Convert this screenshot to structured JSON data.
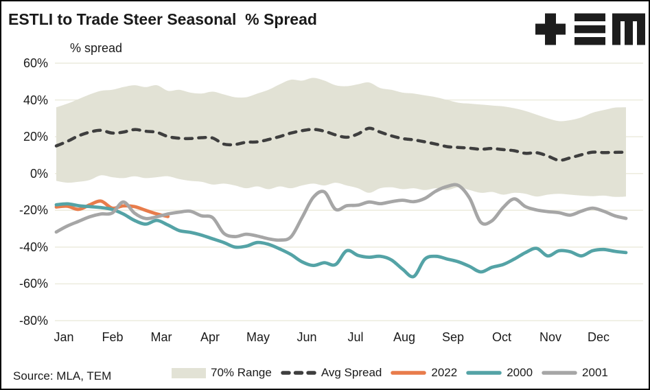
{
  "header": {
    "title": "ESTLI to Trade Steer Seasonal  % Spread",
    "logo": "tem-logo"
  },
  "source": "Source: MLA, TEM",
  "colors": {
    "band": "#E2E2D5",
    "gridline": "#ECEBDD",
    "avg_spread": "#3E3E3E",
    "s2022": "#E87C4B",
    "s2000": "#54A3A6",
    "s2001": "#A6A6A6",
    "text": "#1A1A1A"
  },
  "chart_data": {
    "type": "line",
    "title": "ESTLI to Trade Steer Seasonal  % Spread",
    "xlabel": "",
    "ylabel": "% spread",
    "axis_label": "% spread",
    "ylim": [
      -80,
      60
    ],
    "y_ticks": [
      60,
      40,
      20,
      0,
      -20,
      -40,
      -60,
      -80
    ],
    "y_tick_labels": [
      "60%",
      "40%",
      "20%",
      "0%",
      "-20%",
      "-40%",
      "-60%",
      "-80%"
    ],
    "x_tick_labels": [
      "Jan",
      "Feb",
      "Mar",
      "Apr",
      "May",
      "Jun",
      "Jul",
      "Aug",
      "Sep",
      "Oct",
      "Nov",
      "Dec"
    ],
    "grid": "horizontal-only",
    "legend_position": "bottom",
    "legend": [
      {
        "label": "70% Range",
        "style": "band",
        "color": "#E2E2D5"
      },
      {
        "label": "Avg Spread",
        "style": "dashed",
        "color": "#3E3E3E"
      },
      {
        "label": "2022",
        "style": "solid",
        "color": "#E87C4B"
      },
      {
        "label": "2000",
        "style": "solid",
        "color": "#54A3A6"
      },
      {
        "label": "2001",
        "style": "solid",
        "color": "#A6A6A6"
      }
    ],
    "x_unit": "weeks (Jan-Dec)",
    "band": {
      "name": "70% Range",
      "color": "#E2E2D5",
      "upper": [
        36,
        38,
        40.5,
        43,
        45,
        45.5,
        47,
        48,
        47,
        48,
        45,
        45.5,
        44,
        43.5,
        44.5,
        43,
        41.5,
        41.5,
        43.5,
        45.5,
        48.5,
        51,
        50.5,
        52,
        50.5,
        48,
        47.5,
        48.5,
        49.5,
        46.5,
        45.5,
        44,
        43.5,
        42.5,
        41.5,
        40,
        38.5,
        38,
        37.5,
        37,
        36.5,
        35.5,
        34,
        32,
        30,
        28.5,
        29,
        30.5,
        33,
        34.5,
        35.8,
        36
      ],
      "lower": [
        -4,
        -5,
        -4.5,
        -3.5,
        -1,
        -2,
        -2.5,
        -1.5,
        -2.5,
        -2,
        -1.5,
        -3,
        -4,
        -4.5,
        -6,
        -5.5,
        -6.5,
        -8,
        -7,
        -8.5,
        -7,
        -8,
        -6.5,
        -5.5,
        -6.5,
        -5,
        -6.5,
        -8,
        -10.5,
        -8,
        -7.5,
        -8.5,
        -8,
        -9,
        -8,
        -9,
        -7.5,
        -9,
        -10.5,
        -10,
        -11.5,
        -10.5,
        -11,
        -12.5,
        -11.5,
        -11,
        -11.5,
        -12,
        -12.3,
        -12,
        -12.7,
        -12.5
      ]
    },
    "series": [
      {
        "name": "Avg Spread",
        "color": "#3E3E3E",
        "style": "dashed",
        "values": [
          15,
          17.5,
          20.5,
          22.5,
          23.5,
          22,
          22.5,
          23.9,
          23,
          22.4,
          20.1,
          19.2,
          19,
          19.5,
          19.3,
          16,
          15.8,
          17,
          17.2,
          18.5,
          20.1,
          22,
          23.3,
          24,
          23,
          21,
          19.7,
          21.5,
          24.6,
          22.5,
          20.5,
          19,
          18.3,
          17.2,
          16,
          14.6,
          14.2,
          13.8,
          13.2,
          13.6,
          13,
          12.4,
          11,
          11.3,
          9.5,
          7.2,
          8.5,
          10.2,
          11.6,
          11.4,
          11.5,
          11.6
        ]
      },
      {
        "name": "2022",
        "color": "#E87C4B",
        "style": "solid",
        "values": [
          -18.2,
          -17.8,
          -19.5,
          -17,
          -15,
          -18.8,
          -17.6,
          -18,
          -20,
          -22,
          -23.4
        ]
      },
      {
        "name": "2000",
        "color": "#54A3A6",
        "style": "solid",
        "values": [
          -17,
          -16.5,
          -17.5,
          -18,
          -18.5,
          -19.5,
          -22,
          -25.5,
          -27.5,
          -25.5,
          -28,
          -31,
          -32,
          -33.5,
          -35.5,
          -37.5,
          -40,
          -39.5,
          -37.5,
          -38.5,
          -41,
          -44,
          -48,
          -50,
          -48.5,
          -49.5,
          -42,
          -44.5,
          -45.5,
          -45,
          -47,
          -52,
          -56,
          -46.5,
          -45,
          -46.5,
          -48,
          -50.5,
          -53.5,
          -51,
          -49.5,
          -46.5,
          -43,
          -40.7,
          -44.8,
          -42,
          -42.5,
          -44.8,
          -42,
          -41.3,
          -42.3,
          -43
        ]
      },
      {
        "name": "2001",
        "color": "#A6A6A6",
        "style": "solid",
        "values": [
          -31.8,
          -28.5,
          -26,
          -23.5,
          -22,
          -21.5,
          -15.5,
          -21.5,
          -24.5,
          -23.5,
          -22,
          -21,
          -20.5,
          -23,
          -24,
          -32.5,
          -34.3,
          -33,
          -34,
          -35.5,
          -36.2,
          -34.5,
          -24,
          -13,
          -10,
          -19.5,
          -17.5,
          -17.2,
          -15.5,
          -16.4,
          -15.3,
          -14.5,
          -15.3,
          -13.5,
          -9.5,
          -7,
          -6.5,
          -13.4,
          -26.5,
          -25.7,
          -18.5,
          -13.8,
          -18,
          -19.8,
          -20.7,
          -21.3,
          -22.6,
          -20.5,
          -18.8,
          -20.5,
          -23,
          -24.4
        ]
      }
    ]
  }
}
